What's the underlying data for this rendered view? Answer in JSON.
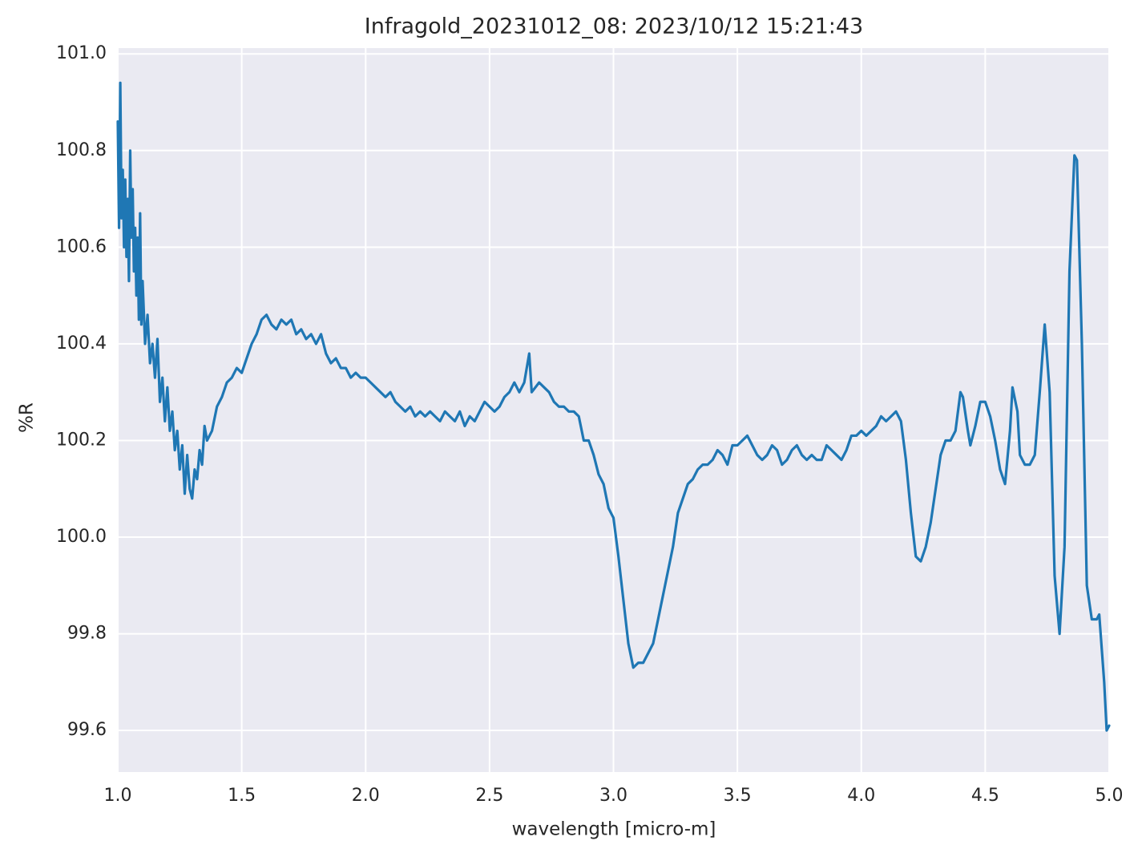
{
  "chart_data": {
    "type": "line",
    "title": "Infragold_20231012_08:  2023/10/12 15:21:43",
    "xlabel": "wavelength [micro-m]",
    "ylabel": "%R",
    "color": "#1f77b4",
    "grid": true,
    "xlim": [
      1.0,
      5.0
    ],
    "ylim": [
      99.514,
      101.012
    ],
    "xticks": [
      {
        "value": 1.0,
        "label": "1.0"
      },
      1.5,
      {
        "value": 2.0,
        "label": "2.0"
      },
      2.5,
      {
        "value": 3.0,
        "label": "3.0"
      },
      3.5,
      {
        "value": 4.0,
        "label": "4.0"
      },
      4.5,
      {
        "value": 5.0,
        "label": "5.0"
      }
    ],
    "yticks": [
      99.6,
      99.8,
      {
        "value": 100.0,
        "label": "100.0"
      },
      100.2,
      100.4,
      100.6,
      100.8,
      {
        "value": 101.0,
        "label": "101.0"
      }
    ],
    "x": [
      1.0,
      1.005,
      1.01,
      1.015,
      1.02,
      1.025,
      1.03,
      1.035,
      1.04,
      1.045,
      1.05,
      1.055,
      1.06,
      1.065,
      1.07,
      1.075,
      1.08,
      1.085,
      1.09,
      1.095,
      1.1,
      1.11,
      1.12,
      1.13,
      1.14,
      1.15,
      1.16,
      1.17,
      1.18,
      1.19,
      1.2,
      1.21,
      1.22,
      1.23,
      1.24,
      1.25,
      1.26,
      1.27,
      1.28,
      1.29,
      1.3,
      1.31,
      1.32,
      1.33,
      1.34,
      1.35,
      1.36,
      1.38,
      1.4,
      1.42,
      1.44,
      1.46,
      1.48,
      1.5,
      1.52,
      1.54,
      1.56,
      1.58,
      1.6,
      1.62,
      1.64,
      1.66,
      1.68,
      1.7,
      1.72,
      1.74,
      1.76,
      1.78,
      1.8,
      1.82,
      1.84,
      1.86,
      1.88,
      1.9,
      1.92,
      1.94,
      1.96,
      1.98,
      2.0,
      2.02,
      2.04,
      2.06,
      2.08,
      2.1,
      2.12,
      2.14,
      2.16,
      2.18,
      2.2,
      2.22,
      2.24,
      2.26,
      2.28,
      2.3,
      2.32,
      2.34,
      2.36,
      2.38,
      2.4,
      2.42,
      2.44,
      2.46,
      2.48,
      2.5,
      2.52,
      2.54,
      2.56,
      2.58,
      2.6,
      2.62,
      2.64,
      2.66,
      2.67,
      2.7,
      2.72,
      2.74,
      2.76,
      2.78,
      2.8,
      2.82,
      2.84,
      2.86,
      2.88,
      2.9,
      2.92,
      2.94,
      2.96,
      2.98,
      3.0,
      3.02,
      3.04,
      3.06,
      3.08,
      3.1,
      3.12,
      3.14,
      3.16,
      3.18,
      3.2,
      3.22,
      3.24,
      3.26,
      3.28,
      3.3,
      3.32,
      3.34,
      3.36,
      3.38,
      3.4,
      3.42,
      3.44,
      3.46,
      3.48,
      3.5,
      3.52,
      3.54,
      3.56,
      3.58,
      3.6,
      3.62,
      3.64,
      3.66,
      3.68,
      3.7,
      3.72,
      3.74,
      3.76,
      3.78,
      3.8,
      3.82,
      3.84,
      3.86,
      3.88,
      3.9,
      3.92,
      3.94,
      3.96,
      3.98,
      4.0,
      4.02,
      4.04,
      4.06,
      4.08,
      4.1,
      4.12,
      4.14,
      4.16,
      4.18,
      4.2,
      4.22,
      4.24,
      4.26,
      4.28,
      4.3,
      4.32,
      4.34,
      4.36,
      4.38,
      4.4,
      4.41,
      4.43,
      4.44,
      4.46,
      4.48,
      4.5,
      4.52,
      4.54,
      4.56,
      4.58,
      4.6,
      4.61,
      4.63,
      4.64,
      4.66,
      4.68,
      4.7,
      4.72,
      4.74,
      4.76,
      4.78,
      4.8,
      4.82,
      4.84,
      4.86,
      4.87,
      4.89,
      4.91,
      4.93,
      4.95,
      4.96,
      4.98,
      4.99,
      5.0
    ],
    "values": [
      100.86,
      100.64,
      100.94,
      100.66,
      100.76,
      100.6,
      100.74,
      100.58,
      100.7,
      100.53,
      100.8,
      100.62,
      100.72,
      100.55,
      100.64,
      100.5,
      100.62,
      100.45,
      100.67,
      100.44,
      100.53,
      100.4,
      100.46,
      100.36,
      100.4,
      100.33,
      100.41,
      100.28,
      100.33,
      100.24,
      100.31,
      100.22,
      100.26,
      100.18,
      100.22,
      100.14,
      100.19,
      100.09,
      100.17,
      100.1,
      100.08,
      100.14,
      100.12,
      100.18,
      100.15,
      100.23,
      100.2,
      100.22,
      100.27,
      100.29,
      100.32,
      100.33,
      100.35,
      100.34,
      100.37,
      100.4,
      100.42,
      100.45,
      100.46,
      100.44,
      100.43,
      100.45,
      100.44,
      100.45,
      100.42,
      100.43,
      100.41,
      100.42,
      100.4,
      100.42,
      100.38,
      100.36,
      100.37,
      100.35,
      100.35,
      100.33,
      100.34,
      100.33,
      100.33,
      100.32,
      100.31,
      100.3,
      100.29,
      100.3,
      100.28,
      100.27,
      100.26,
      100.27,
      100.25,
      100.26,
      100.25,
      100.26,
      100.25,
      100.24,
      100.26,
      100.25,
      100.24,
      100.26,
      100.23,
      100.25,
      100.24,
      100.26,
      100.28,
      100.27,
      100.26,
      100.27,
      100.29,
      100.3,
      100.32,
      100.3,
      100.32,
      100.38,
      100.3,
      100.32,
      100.31,
      100.3,
      100.28,
      100.27,
      100.27,
      100.26,
      100.26,
      100.25,
      100.2,
      100.2,
      100.17,
      100.13,
      100.11,
      100.06,
      100.04,
      99.96,
      99.87,
      99.78,
      99.73,
      99.74,
      99.74,
      99.76,
      99.78,
      99.83,
      99.88,
      99.93,
      99.98,
      100.05,
      100.08,
      100.11,
      100.12,
      100.14,
      100.15,
      100.15,
      100.16,
      100.18,
      100.17,
      100.15,
      100.19,
      100.19,
      100.2,
      100.21,
      100.19,
      100.17,
      100.16,
      100.17,
      100.19,
      100.18,
      100.15,
      100.16,
      100.18,
      100.19,
      100.17,
      100.16,
      100.17,
      100.16,
      100.16,
      100.19,
      100.18,
      100.17,
      100.16,
      100.18,
      100.21,
      100.21,
      100.22,
      100.21,
      100.22,
      100.23,
      100.25,
      100.24,
      100.25,
      100.26,
      100.24,
      100.16,
      100.05,
      99.96,
      99.95,
      99.98,
      100.03,
      100.1,
      100.17,
      100.2,
      100.2,
      100.22,
      100.3,
      100.29,
      100.22,
      100.19,
      100.23,
      100.28,
      100.28,
      100.25,
      100.2,
      100.14,
      100.11,
      100.22,
      100.31,
      100.26,
      100.17,
      100.15,
      100.15,
      100.17,
      100.3,
      100.44,
      100.3,
      99.92,
      99.8,
      99.98,
      100.55,
      100.79,
      100.78,
      100.4,
      99.9,
      99.83,
      99.83,
      99.84,
      99.7,
      99.6,
      99.61
    ]
  }
}
